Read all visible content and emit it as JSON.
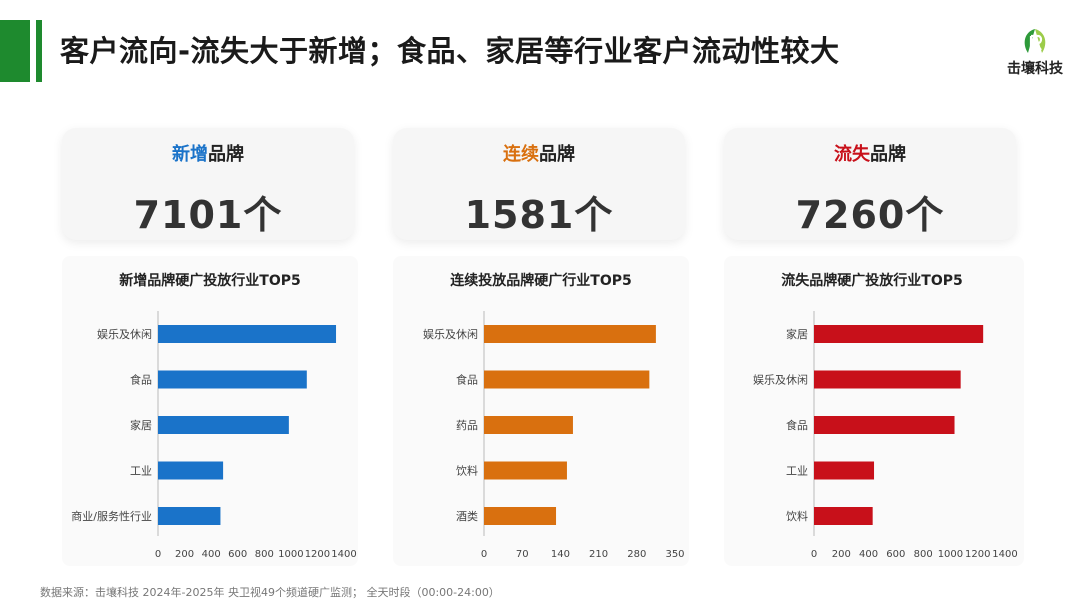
{
  "title": "客户流向-流失大于新增；食品、家居等行业客户流动性较大",
  "logo_text": "击壤科技",
  "cards": [
    {
      "label_colored": "新增",
      "label_rest": "品牌",
      "color": "#1a73c9",
      "value": "7101个"
    },
    {
      "label_colored": "连续",
      "label_rest": "品牌",
      "color": "#d9700f",
      "value": "1581个"
    },
    {
      "label_colored": "流失",
      "label_rest": "品牌",
      "color": "#c8101a",
      "value": "7260个"
    }
  ],
  "chart_data": [
    {
      "type": "bar",
      "orientation": "horizontal",
      "title": "新增品牌硬广投放行业TOP5",
      "categories": [
        "娱乐及休闲",
        "食品",
        "家居",
        "工业",
        "商业/服务性行业"
      ],
      "values": [
        1340,
        1120,
        985,
        490,
        470
      ],
      "xlim": [
        0,
        1400
      ],
      "xticks": [
        "0",
        "200",
        "400",
        "600",
        "800",
        "1000",
        "1200",
        "1400"
      ],
      "color": "#1a73c9",
      "grid": false
    },
    {
      "type": "bar",
      "orientation": "horizontal",
      "title": "连续投放品牌硬广行业TOP5",
      "categories": [
        "娱乐及休闲",
        "食品",
        "药品",
        "饮料",
        "酒类"
      ],
      "values": [
        315,
        303,
        163,
        152,
        132
      ],
      "xlim": [
        0,
        350
      ],
      "xticks": [
        "0",
        "70",
        "140",
        "210",
        "280",
        "350"
      ],
      "color": "#d9700f",
      "grid": false
    },
    {
      "type": "bar",
      "orientation": "horizontal",
      "title": "流失品牌硬广投放行业TOP5",
      "categories": [
        "家居",
        "娱乐及休闲",
        "食品",
        "工业",
        "饮料"
      ],
      "values": [
        1240,
        1075,
        1030,
        440,
        430
      ],
      "xlim": [
        0,
        1400
      ],
      "xticks": [
        "0",
        "200",
        "400",
        "600",
        "800",
        "1000",
        "1200",
        "1400"
      ],
      "color": "#c8101a",
      "grid": false
    }
  ],
  "footnote": "数据来源：击壤科技  2024年-2025年 央卫视49个频道硬广监测； 全天时段（00:00-24:00）"
}
